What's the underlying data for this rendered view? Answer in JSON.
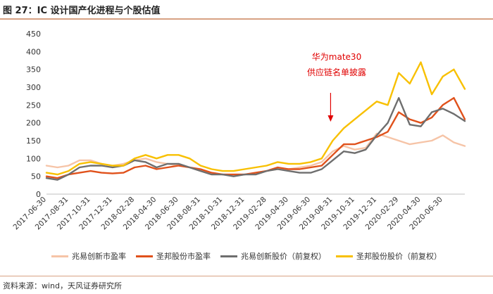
{
  "header": {
    "title": "图 27：IC 设计国产化进程与个股估值"
  },
  "footer": {
    "source": "资料来源：wind，天风证券研究所"
  },
  "colors": {
    "zhaoyi_pe": "#f6c4a7",
    "shengbang_pe": "#e0511b",
    "zhaoyi_price": "#6e6e6e",
    "shengbang_price": "#f8c000",
    "axis": "#bfbfbf",
    "annotation": "#e00000"
  },
  "annotation": {
    "line1": "华为mate30",
    "line2": "供应链名单披露",
    "arrow_date_index": 26
  },
  "chart_data": {
    "type": "line",
    "title": "IC 设计国产化进程与个股估值",
    "xlabel": "",
    "ylabel": "",
    "ylim": [
      0,
      450
    ],
    "yticks": [
      0,
      50,
      100,
      150,
      200,
      250,
      300,
      350,
      400,
      450
    ],
    "grid": false,
    "legend_position": "bottom",
    "x": [
      "2017-06-30",
      "2017-07-31",
      "2017-08-31",
      "2017-09-30",
      "2017-10-31",
      "2017-11-30",
      "2017-12-31",
      "2018-01-31",
      "2018-02-28",
      "2018-03-31",
      "2018-04-30",
      "2018-05-31",
      "2018-06-30",
      "2018-07-31",
      "2018-08-31",
      "2018-09-30",
      "2018-10-31",
      "2018-11-30",
      "2018-12-31",
      "2019-01-31",
      "2019-02-28",
      "2019-03-31",
      "2019-04-30",
      "2019-05-31",
      "2019-06-30",
      "2019-07-31",
      "2019-08-31",
      "2019-09-30",
      "2019-10-31",
      "2019-11-30",
      "2019-12-31",
      "2020-01-31",
      "2020-02-29",
      "2020-03-31",
      "2020-04-30",
      "2020-05-31",
      "2020-06-30",
      "2020-07-31",
      "2020-08-31"
    ],
    "xtick_labels": [
      "2017-06-30",
      "2017-08-31",
      "2017-10-31",
      "2017-12-31",
      "2018-02-28",
      "2018-04-30",
      "2018-06-30",
      "2018-08-31",
      "2018-10-31",
      "2018-12-31",
      "2019-02-28",
      "2019-04-30",
      "2019-06-30",
      "2019-08-31",
      "2019-10-31",
      "2019-12-31",
      "2020-02-29",
      "2020-04-30",
      "2020-06-30"
    ],
    "series": [
      {
        "name": "兆易创新市盈率",
        "color": "#f6c4a7",
        "values": [
          80,
          75,
          80,
          95,
          95,
          85,
          80,
          85,
          95,
          100,
          90,
          85,
          80,
          75,
          65,
          60,
          55,
          55,
          55,
          60,
          65,
          70,
          70,
          75,
          80,
          90,
          120,
          135,
          125,
          130,
          170,
          160,
          150,
          140,
          145,
          150,
          165,
          145,
          135
        ]
      },
      {
        "name": "圣邦股份市盈率",
        "color": "#e0511b",
        "values": [
          50,
          45,
          55,
          60,
          65,
          60,
          58,
          60,
          75,
          80,
          70,
          75,
          80,
          75,
          70,
          60,
          55,
          55,
          55,
          60,
          65,
          75,
          70,
          70,
          75,
          80,
          110,
          140,
          140,
          150,
          160,
          175,
          230,
          210,
          200,
          215,
          250,
          270,
          210
        ]
      },
      {
        "name": "兆易创新股价（前复权）",
        "color": "#6e6e6e",
        "values": [
          45,
          40,
          55,
          75,
          80,
          80,
          75,
          80,
          95,
          90,
          75,
          85,
          85,
          75,
          65,
          55,
          55,
          50,
          55,
          55,
          65,
          70,
          65,
          60,
          60,
          70,
          95,
          120,
          115,
          125,
          165,
          200,
          270,
          195,
          190,
          230,
          240,
          225,
          205
        ]
      },
      {
        "name": "圣邦股份股价（前复权）",
        "color": "#f8c000",
        "values": [
          60,
          55,
          65,
          85,
          90,
          85,
          80,
          80,
          100,
          110,
          100,
          110,
          110,
          100,
          80,
          70,
          65,
          65,
          70,
          75,
          80,
          90,
          85,
          85,
          90,
          100,
          150,
          185,
          210,
          235,
          260,
          250,
          340,
          310,
          370,
          280,
          330,
          350,
          295
        ]
      }
    ]
  },
  "legend": {
    "items": [
      "兆易创新市盈率",
      "圣邦股份市盈率",
      "兆易创新股价（前复权）",
      "圣邦股份股价（前复权）"
    ]
  }
}
